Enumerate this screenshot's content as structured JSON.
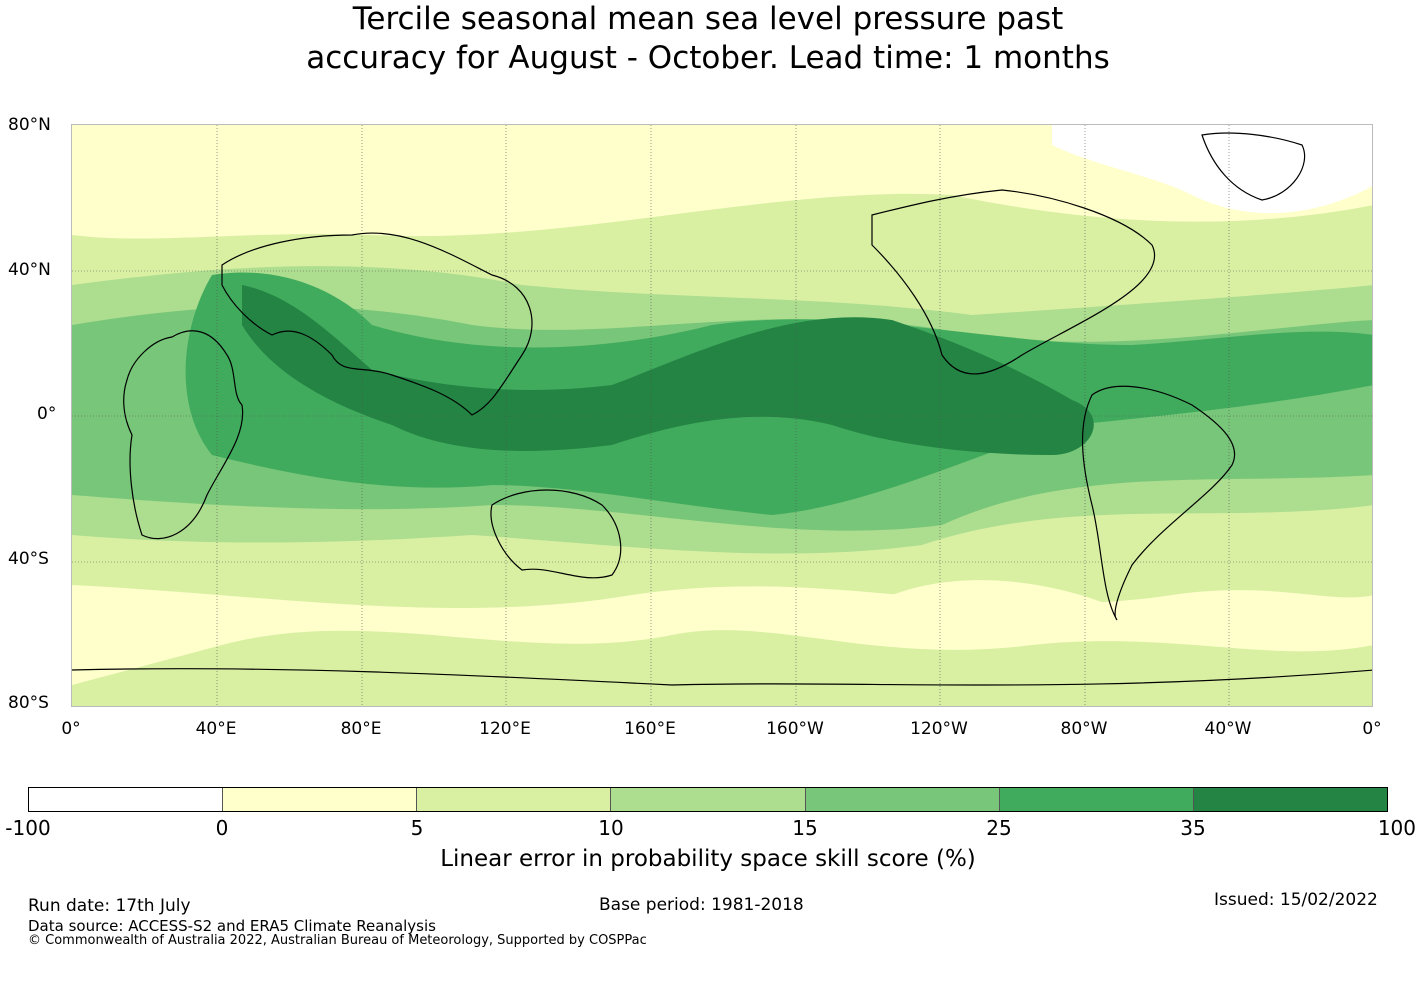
{
  "title_line1": "Tercile seasonal mean sea level pressure past",
  "title_line2": "accuracy for August - October. Lead time: 1 months",
  "lat_labels": [
    "80°N",
    "40°N",
    "0°",
    "40°S",
    "80°S"
  ],
  "lon_labels": [
    "0°",
    "40°E",
    "80°E",
    "120°E",
    "160°E",
    "160°W",
    "120°W",
    "80°W",
    "40°W",
    "0°"
  ],
  "colorbar": {
    "ticks": [
      "-100",
      "0",
      "5",
      "10",
      "15",
      "25",
      "35",
      "100"
    ],
    "colors": [
      "#ffffff",
      "#ffffcc",
      "#d9f0a3",
      "#addd8e",
      "#78c679",
      "#41ab5d",
      "#238443"
    ],
    "label": "Linear error in probability space skill score (%)"
  },
  "footer": {
    "run_date": "Run date: 17th July",
    "base_period": "Base period: 1981-2018",
    "issued": "Issued: 15/02/2022",
    "data_source": "Data source: ACCESS-S2 and ERA5 Climate Reanalysis",
    "copyright": "© Commonwealth of Australia 2022, Australian Bureau of Meteorology, Supported by COSPPac"
  }
}
